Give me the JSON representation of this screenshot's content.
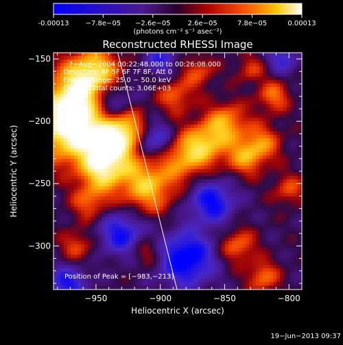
{
  "colorbar": {
    "ticks": [
      "-0.00013",
      "−7.8e−05",
      "−2.6e−05",
      "2.6e−05",
      "7.8e−05",
      "0.00013"
    ],
    "units": "(photons cm⁻² s⁻¹ asec⁻²)",
    "range": [
      -0.00013,
      0.00013
    ]
  },
  "chart_data": {
    "type": "heatmap",
    "title": "Reconstructed RHESSI Image",
    "xlabel": "Heliocentric X (arcsec)",
    "ylabel": "Heliocentric Y (arcsec)",
    "xlim": [
      -983,
      -790
    ],
    "ylim": [
      -335,
      -145
    ],
    "xticks": [
      -950,
      -900,
      -850,
      -800
    ],
    "yticks": [
      -150,
      -200,
      -250,
      -300
    ],
    "xtick_labels": [
      "−950",
      "−900",
      "−850",
      "−800"
    ],
    "ytick_labels": [
      "−150",
      "−200",
      "−250",
      "−300"
    ],
    "limb_line": [
      [
        -933,
        -145
      ],
      [
        -887,
        -335
      ]
    ],
    "annotations": [
      "7−Aug−2004 00:22:48.000 to 00:26:08.000",
      "Detectors: 4F 5F 6F 7F 8F, Att 0",
      "Energy Range: 25.0 − 50.0 keV",
      "Clean    Total counts: 3.06E+03"
    ],
    "peak_label": "Position of Peak = [−983,−213]",
    "peak": [
      -983,
      -213
    ]
  },
  "timestamp": "19−Jun−2013 09:37"
}
